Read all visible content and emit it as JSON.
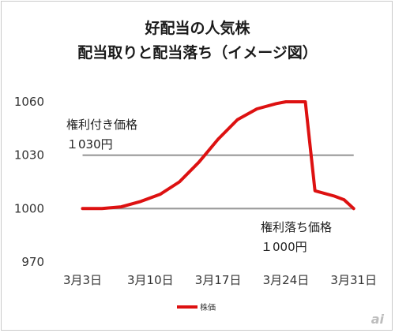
{
  "chart_data": {
    "type": "line",
    "title_lines": [
      "好配当の人気株",
      "配当取りと配当落ち（イメージ図）"
    ],
    "x_ticks": [
      {
        "day": 3,
        "label": "3月3日"
      },
      {
        "day": 10,
        "label": "3月10日"
      },
      {
        "day": 17,
        "label": "3月17日"
      },
      {
        "day": 24,
        "label": "3月24日"
      },
      {
        "day": 31,
        "label": "3月31日"
      }
    ],
    "y_ticks": [
      1060,
      1030,
      1000,
      970
    ],
    "ylim": [
      970,
      1060
    ],
    "xlim": [
      1,
      32
    ],
    "grid": false,
    "reference_lines": [
      {
        "value": 1030,
        "label_lines": [
          "権利付き価格",
          "１030円"
        ],
        "color": "#999999"
      },
      {
        "value": 1000,
        "label_lines": [
          "権利落ち価格",
          "１000円"
        ],
        "color": "#999999"
      }
    ],
    "series": [
      {
        "name": "株価",
        "color": "#dd1111",
        "x": [
          3,
          5,
          7,
          9,
          11,
          13,
          15,
          17,
          19,
          21,
          23,
          24,
          25,
          26,
          27,
          29,
          30,
          31
        ],
        "y": [
          1000,
          1000,
          1001,
          1004,
          1008,
          1015,
          1026,
          1039,
          1050,
          1056,
          1059,
          1060,
          1060,
          1060,
          1010,
          1007,
          1005,
          1000
        ]
      }
    ],
    "legend_position": "bottom"
  },
  "watermark": "ai"
}
